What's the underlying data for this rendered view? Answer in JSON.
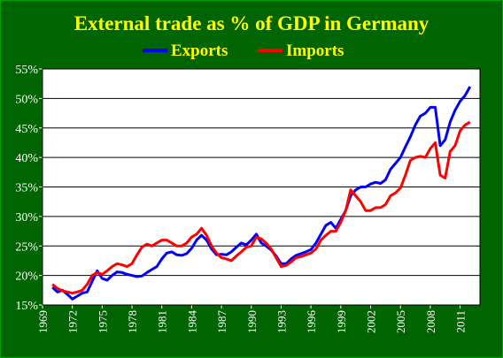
{
  "chart_data": {
    "type": "line",
    "title": "External trade as % of GDP in Germany",
    "xlabel": "",
    "ylabel": "",
    "xlim": [
      1969,
      2013
    ],
    "ylim": [
      15,
      55
    ],
    "x_ticks": [
      "1969",
      "1972",
      "1975",
      "1978",
      "1981",
      "1984",
      "1987",
      "1990",
      "1993",
      "1996",
      "1999",
      "2002",
      "2005",
      "2008",
      "2011"
    ],
    "y_ticks": [
      "15%",
      "20%",
      "25%",
      "30%",
      "35%",
      "40%",
      "45%",
      "50%",
      "55%"
    ],
    "grid": true,
    "legend_position": "top-center",
    "colors": {
      "background": "#006400",
      "plot_area": "#ffffff",
      "grid": "#000000",
      "title": "#ffff00",
      "tick_labels": "#ffffff",
      "exports": "#0000ff",
      "imports": "#ff0000"
    },
    "series": [
      {
        "name": "Exports",
        "color": "#0000ff",
        "x": [
          1970.0,
          1970.5,
          1971.0,
          1971.5,
          1972.0,
          1972.5,
          1973.0,
          1973.5,
          1974.0,
          1974.5,
          1975.0,
          1975.5,
          1976.0,
          1976.5,
          1977.0,
          1977.5,
          1978.0,
          1978.5,
          1979.0,
          1979.5,
          1980.0,
          1980.5,
          1981.0,
          1981.5,
          1982.0,
          1982.5,
          1983.0,
          1983.5,
          1984.0,
          1984.5,
          1985.0,
          1985.5,
          1986.0,
          1986.5,
          1987.0,
          1987.5,
          1988.0,
          1988.5,
          1989.0,
          1989.5,
          1990.0,
          1990.5,
          1991.0,
          1991.5,
          1992.0,
          1992.5,
          1993.0,
          1993.5,
          1994.0,
          1994.5,
          1995.0,
          1995.5,
          1996.0,
          1996.5,
          1997.0,
          1997.5,
          1998.0,
          1998.5,
          1999.0,
          1999.5,
          2000.0,
          2000.5,
          2001.0,
          2001.5,
          2002.0,
          2002.5,
          2003.0,
          2003.5,
          2004.0,
          2004.5,
          2005.0,
          2005.5,
          2006.0,
          2006.5,
          2007.0,
          2007.5,
          2008.0,
          2008.5,
          2009.0,
          2009.5,
          2010.0,
          2010.5,
          2011.0,
          2011.5,
          2012.0
        ],
        "values": [
          18.0,
          17.2,
          17.5,
          16.8,
          16.0,
          16.5,
          17.0,
          17.2,
          19.0,
          20.8,
          19.5,
          19.2,
          20.0,
          20.6,
          20.5,
          20.2,
          20.0,
          19.8,
          19.9,
          20.5,
          21.0,
          21.5,
          22.8,
          23.8,
          24.0,
          23.5,
          23.4,
          23.7,
          24.6,
          26.0,
          26.8,
          26.0,
          24.5,
          23.5,
          23.6,
          23.5,
          24.0,
          24.8,
          25.5,
          25.2,
          26.0,
          27.0,
          25.5,
          25.0,
          24.3,
          23.3,
          22.0,
          22.0,
          22.8,
          23.4,
          23.7,
          24.0,
          24.4,
          25.5,
          27.0,
          28.5,
          29.0,
          28.0,
          29.5,
          31.0,
          33.5,
          34.5,
          35.0,
          35.0,
          35.5,
          35.8,
          35.6,
          36.2,
          38.0,
          39.0,
          40.0,
          41.8,
          43.5,
          45.5,
          47.0,
          47.5,
          48.5,
          48.5,
          42.0,
          43.0,
          46.0,
          48.0,
          49.5,
          50.5,
          52.0
        ]
      },
      {
        "name": "Imports",
        "color": "#ff0000",
        "x": [
          1970.0,
          1970.5,
          1971.0,
          1971.5,
          1972.0,
          1972.5,
          1973.0,
          1973.5,
          1974.0,
          1974.5,
          1975.0,
          1975.5,
          1976.0,
          1976.5,
          1977.0,
          1977.5,
          1978.0,
          1978.5,
          1979.0,
          1979.5,
          1980.0,
          1980.5,
          1981.0,
          1981.5,
          1982.0,
          1982.5,
          1983.0,
          1983.5,
          1984.0,
          1984.5,
          1985.0,
          1985.5,
          1986.0,
          1986.5,
          1987.0,
          1987.5,
          1988.0,
          1988.5,
          1989.0,
          1989.5,
          1990.0,
          1990.5,
          1991.0,
          1991.5,
          1992.0,
          1992.5,
          1993.0,
          1993.5,
          1994.0,
          1994.5,
          1995.0,
          1995.5,
          1996.0,
          1996.5,
          1997.0,
          1997.5,
          1998.0,
          1998.5,
          1999.0,
          1999.5,
          2000.0,
          2000.5,
          2001.0,
          2001.5,
          2002.0,
          2002.5,
          2003.0,
          2003.5,
          2004.0,
          2004.5,
          2005.0,
          2005.5,
          2006.0,
          2006.5,
          2007.0,
          2007.5,
          2008.0,
          2008.5,
          2009.0,
          2009.5,
          2010.0,
          2010.5,
          2011.0,
          2011.5,
          2012.0
        ],
        "values": [
          18.5,
          17.8,
          17.4,
          17.2,
          17.0,
          17.2,
          17.5,
          18.5,
          20.0,
          20.5,
          20.2,
          20.8,
          21.5,
          22.0,
          21.8,
          21.5,
          22.0,
          23.5,
          24.8,
          25.3,
          25.0,
          25.5,
          26.0,
          26.0,
          25.5,
          25.0,
          25.0,
          25.5,
          26.5,
          27.0,
          28.0,
          26.8,
          25.0,
          23.8,
          23.0,
          22.8,
          22.5,
          23.3,
          24.0,
          24.8,
          25.0,
          26.5,
          26.2,
          25.5,
          24.5,
          23.0,
          21.5,
          21.7,
          22.3,
          23.0,
          23.2,
          23.5,
          23.8,
          24.5,
          26.0,
          26.8,
          27.5,
          27.5,
          29.0,
          31.0,
          34.5,
          33.5,
          32.5,
          31.0,
          31.0,
          31.5,
          31.5,
          32.0,
          33.5,
          34.0,
          34.8,
          37.0,
          39.5,
          40.0,
          40.2,
          40.0,
          41.5,
          42.5,
          37.0,
          36.5,
          41.0,
          42.0,
          44.5,
          45.5,
          46.0
        ]
      }
    ]
  }
}
